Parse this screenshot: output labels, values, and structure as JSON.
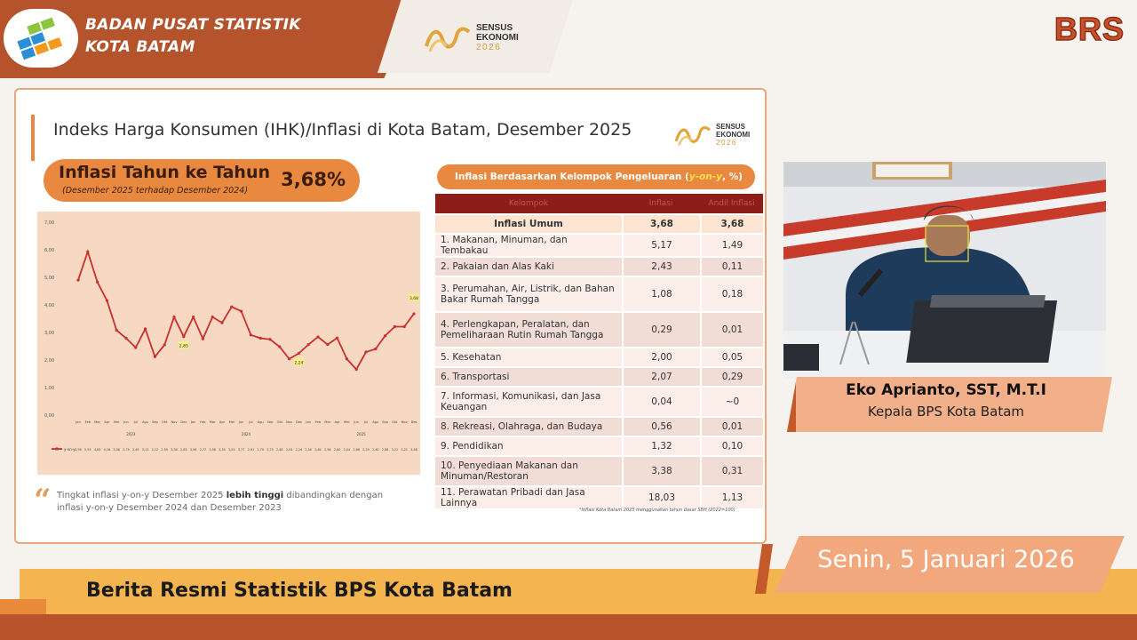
{
  "header": {
    "org_line1": "BADAN PUSAT STATISTIK",
    "org_line2": "KOTA BATAM",
    "sensus_line1": "SENSUS",
    "sensus_line2": "EKONOMI",
    "sensus_year": "2026",
    "brs": "BRS"
  },
  "slide": {
    "title": "Indeks Harga Konsumen (IHK)/Inflasi di Kota Batam, Desember 2025",
    "sensus_line1": "SENSUS",
    "sensus_line2": "EKONOMI",
    "sensus_year": "2026",
    "inflation_label": "Inflasi Tahun ke Tahun",
    "inflation_sub": "(Desember 2025 terhadap Desember 2024)",
    "inflation_value": "3,68%",
    "quote_prefix": "Tingkat inflasi y-on-y Desember 2025 ",
    "quote_bold": "lebih tinggi",
    "quote_suffix": " dibandingkan dengan inflasi y-on-y Desember 2024 dan Desember 2023",
    "table_title_prefix": "Inflasi Berdasarkan Kelompok Pengeluaran (",
    "table_title_hl": "y-on-y",
    "table_title_suffix": ", %)",
    "table_headers": [
      "Kelompok",
      "Inflasi",
      "Andil Inflasi"
    ],
    "rows": [
      {
        "label": "Inflasi Umum",
        "inflasi": "3,68",
        "andil": "3,68"
      },
      {
        "label": "1.  Makanan, Minuman, dan Tembakau",
        "inflasi": "5,17",
        "andil": "1,49"
      },
      {
        "label": "2.  Pakaian dan Alas Kaki",
        "inflasi": "2,43",
        "andil": "0,11"
      },
      {
        "label": "3.  Perumahan, Air, Listrik, dan Bahan Bakar Rumah Tangga",
        "inflasi": "1,08",
        "andil": "0,18"
      },
      {
        "label": "4.  Perlengkapan, Peralatan, dan Pemeliharaan Rutin Rumah Tangga",
        "inflasi": "0,29",
        "andil": "0,01"
      },
      {
        "label": "5.  Kesehatan",
        "inflasi": "2,00",
        "andil": "0,05"
      },
      {
        "label": "6.  Transportasi",
        "inflasi": "2,07",
        "andil": "0,29"
      },
      {
        "label": "7.  Informasi, Komunikasi, dan Jasa Keuangan",
        "inflasi": "0,04",
        "andil": "~0"
      },
      {
        "label": "8.  Rekreasi, Olahraga, dan Budaya",
        "inflasi": "0,56",
        "andil": "0,01"
      },
      {
        "label": "9.  Pendidikan",
        "inflasi": "1,32",
        "andil": "0,10"
      },
      {
        "label": "10. Penyediaan Makanan dan Minuman/Restoran",
        "inflasi": "3,38",
        "andil": "0,31"
      },
      {
        "label": "11. Perawatan Pribadi dan Jasa Lainnya",
        "inflasi": "18,03",
        "andil": "1,13"
      }
    ],
    "footnote": "*Inflasi Kota Batam 2025 menggunakan tahun dasar SBH (2022=100)"
  },
  "chart_data": {
    "type": "line",
    "categories": [
      "Jan",
      "Feb",
      "Mar",
      "Apr",
      "Mei",
      "Jun",
      "Jul",
      "Agu",
      "Sep",
      "Okt",
      "Nov",
      "Des",
      "Jan",
      "Feb",
      "Mar",
      "Apr",
      "Mei",
      "Jun",
      "Jul",
      "Agu",
      "Sep",
      "Okt",
      "Nov",
      "Des",
      "Jan",
      "Feb",
      "Mar",
      "Apr",
      "Mei",
      "Jun",
      "Jul",
      "Agu",
      "Sep",
      "Okt",
      "Nov",
      "Des"
    ],
    "year_labels": [
      "2023",
      "2024",
      "2025"
    ],
    "series": [
      {
        "name": "y-on-y",
        "values": [
          4.9,
          5.93,
          4.83,
          4.16,
          3.08,
          2.79,
          2.45,
          3.13,
          2.12,
          2.55,
          3.56,
          2.85,
          3.56,
          2.77,
          3.56,
          3.35,
          3.93,
          3.77,
          2.91,
          2.79,
          2.75,
          2.48,
          2.04,
          2.24,
          2.56,
          2.84,
          2.56,
          2.8,
          2.04,
          1.66,
          2.29,
          2.4,
          2.88,
          3.21,
          3.21,
          3.68
        ]
      }
    ],
    "value_labels": [
      "4,90",
      "5,93",
      "4,83",
      "4,16",
      "3,08",
      "2,79",
      "2,45",
      "3,13",
      "2,12",
      "2,55",
      "3,56",
      "2,85",
      "3,56",
      "2,77",
      "3,56",
      "3,35",
      "3,93",
      "3,77",
      "2,91",
      "2,79",
      "2,75",
      "2,48",
      "2,04",
      "2,24",
      "2,56",
      "2,84",
      "2,56",
      "2,80",
      "2,04",
      "1,66",
      "2,29",
      "2,40",
      "2,88",
      "3,21",
      "3,21",
      "3,68"
    ],
    "highlights": [
      {
        "index": 11,
        "label": "2,85"
      },
      {
        "index": 23,
        "label": "2,24"
      },
      {
        "index": 35,
        "label": "3,68"
      }
    ],
    "yticks": [
      "0,00",
      "1,00",
      "2,00",
      "3,00",
      "4,00",
      "5,00",
      "6,00",
      "7,00"
    ],
    "ylim": [
      0,
      7
    ],
    "legend": "y-on-y",
    "line_color": "#c9302c"
  },
  "speaker": {
    "name": "Eko Aprianto, SST, M.T.I",
    "role": "Kepala BPS Kota Batam"
  },
  "footer": {
    "date": "Senin, 5 Januari 2026",
    "ticker": "Berita Resmi Statistik BPS Kota Batam"
  }
}
